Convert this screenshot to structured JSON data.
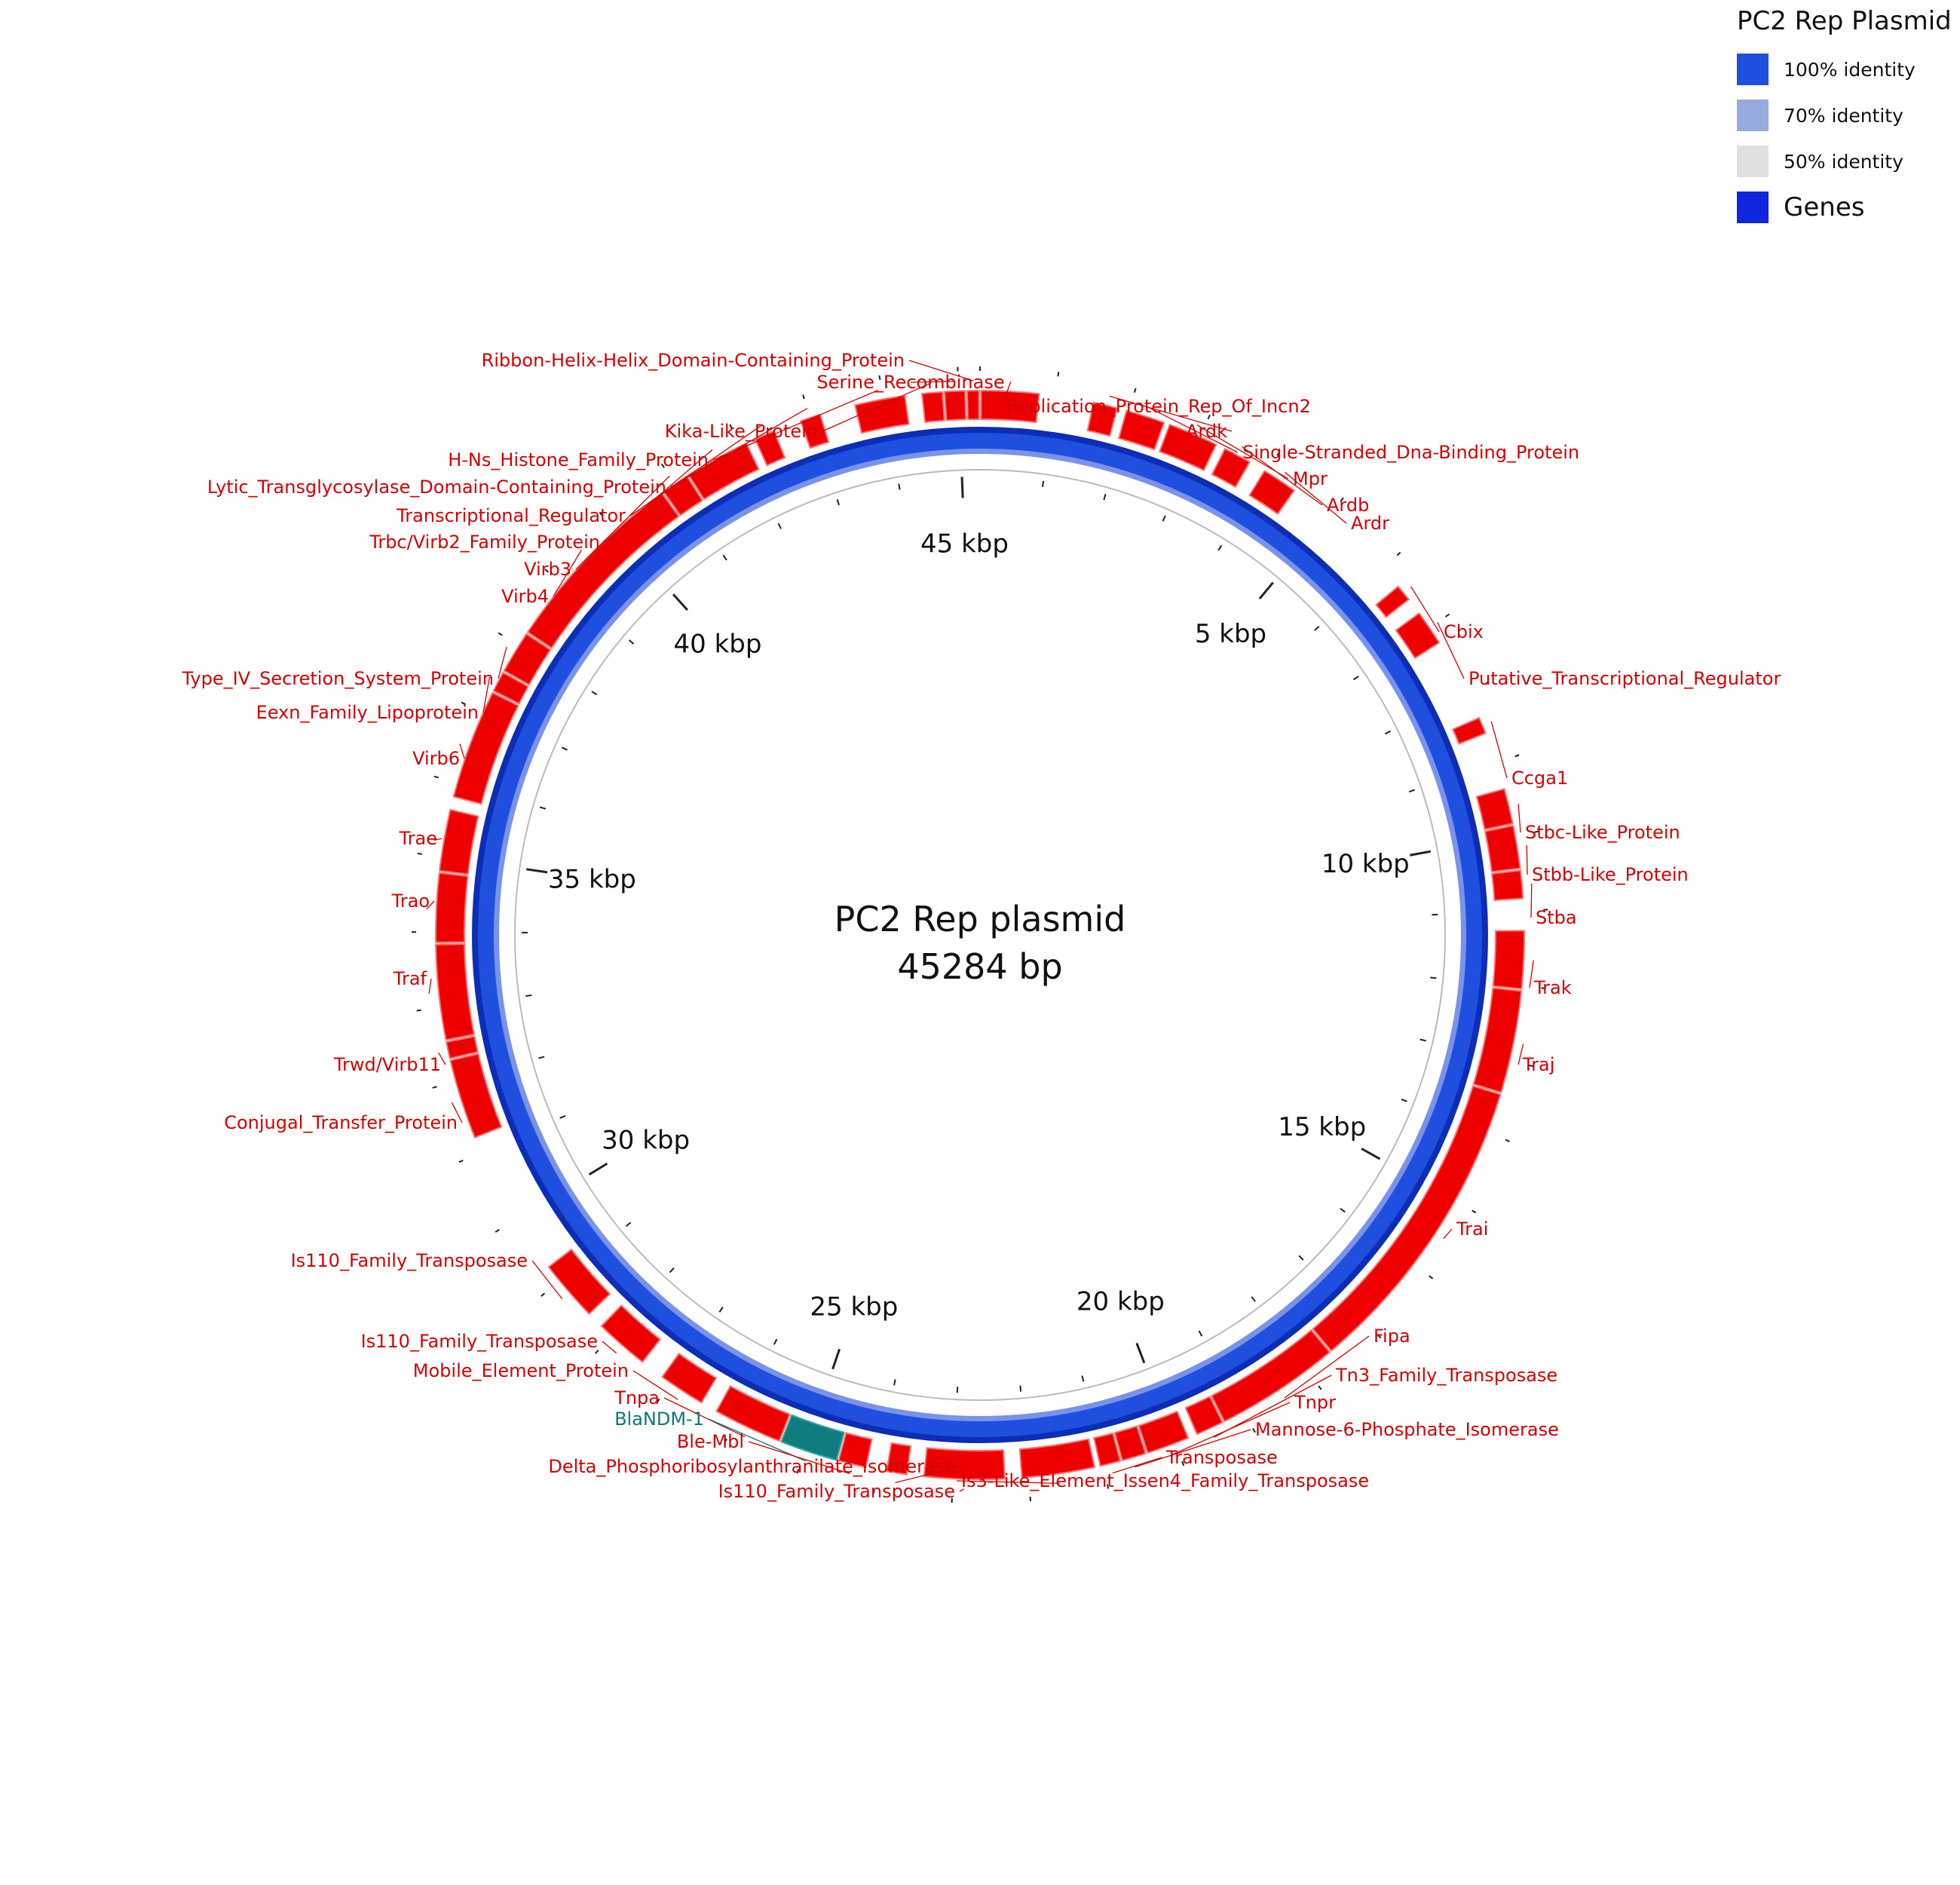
{
  "plasmid": {
    "name": "PC2 Rep plasmid",
    "length_label": "45284 bp",
    "length_bp": 45284
  },
  "legend": {
    "title": "PC2 Rep Plasmid",
    "items": [
      {
        "label": "100% identity",
        "color": "#1f4fdf"
      },
      {
        "label": "70% identity",
        "color": "#97aae0"
      },
      {
        "label": "50% identity",
        "color": "#e0e0e0"
      },
      {
        "label": "Genes",
        "color": "#0f25e0"
      }
    ]
  },
  "colors": {
    "gene": "#ee0000",
    "gene_edge": "#ff7070",
    "highlight_gene": "#0f7d7d",
    "identity_ring": "#1f4fdf",
    "ring_dark": "#0c2db5",
    "ring_light": "#7a93ea",
    "label_red": "#d40000",
    "label_teal": "#0a7a7a"
  },
  "scale_labels": [
    "5 kbp",
    "10 kbp",
    "15 kbp",
    "20 kbp",
    "25 kbp",
    "30 kbp",
    "35 kbp",
    "40 kbp",
    "45 kbp"
  ],
  "scale_positions_kbp": [
    5,
    10,
    15,
    20,
    25,
    30,
    35,
    40,
    45
  ],
  "genes": [
    {
      "name": "Replication_Protein_Rep_Of_Incn2",
      "start": 0,
      "end": 800
    },
    {
      "name": "Ardk",
      "start": 1500,
      "end": 1850
    },
    {
      "name": "Single-Stranded_Dna-Binding_Protein",
      "start": 1950,
      "end": 2500
    },
    {
      "name": "Mpr",
      "start": 2550,
      "end": 3250
    },
    {
      "name": "Ardb",
      "start": 3350,
      "end": 3750
    },
    {
      "name": "Ardr",
      "start": 3950,
      "end": 4450
    },
    {
      "name": "Cbix",
      "start": 6300,
      "end": 6550
    },
    {
      "name": "Putative_Transcriptional_Regulator",
      "start": 6750,
      "end": 7250
    },
    {
      "name": "Ccga1",
      "start": 8350,
      "end": 8600
    },
    {
      "name": "Stbc-Like_Protein",
      "start": 9350,
      "end": 9850
    },
    {
      "name": "Stbb-Like_Protein",
      "start": 9850,
      "end": 10450
    },
    {
      "name": "Stba",
      "start": 10450,
      "end": 10850
    },
    {
      "name": "Trak",
      "start": 11250,
      "end": 12050
    },
    {
      "name": "Traj",
      "start": 12050,
      "end": 13450
    },
    {
      "name": "Trai",
      "start": 13450,
      "end": 17600
    },
    {
      "name": "Fipa",
      "start": 17600,
      "end": 19300
    },
    {
      "name": "Tn3_Family_Transposase",
      "start": 19300,
      "end": 19700
    },
    {
      "name": "Tnpr",
      "start": 19800,
      "end": 20400
    },
    {
      "name": "Mannose-6-Phosphate_Isomerase",
      "start": 20400,
      "end": 20750
    },
    {
      "name": "Transposase",
      "start": 20750,
      "end": 21050
    },
    {
      "name": "Is3-Like_Element_Issen4_Family_Transposase",
      "start": 21100,
      "end": 22100
    },
    {
      "name": "Is110_Family_Transposase",
      "start": 22300,
      "end": 23400
    },
    {
      "name": "Delta_Phosphoribosylanthranilate_Isomerase",
      "start": 23600,
      "end": 23900
    },
    {
      "name": "Ble-Mbl",
      "start": 24150,
      "end": 24550
    },
    {
      "name": "BlaNDM-1",
      "start": 24550,
      "end": 25350,
      "highlight": true
    },
    {
      "name": "Tnpa",
      "start": 25350,
      "end": 26300
    },
    {
      "name": "Mobile_Element_Protein",
      "start": 26500,
      "end": 27150
    },
    {
      "name": "Is110_Family_Transposase",
      "start": 27450,
      "end": 28200
    },
    {
      "name": "Is110_Family_Transposase",
      "start": 28400,
      "end": 29250
    },
    {
      "name": "Conjugal_Transfer_Protein",
      "start": 31200,
      "end": 32300
    },
    {
      "name": "Trwd/Virb11",
      "start": 32300,
      "end": 32550
    },
    {
      "name": "Traf",
      "start": 32550,
      "end": 33850
    },
    {
      "name": "Trao",
      "start": 33850,
      "end": 34800
    },
    {
      "name": "Trae",
      "start": 34800,
      "end": 35650
    },
    {
      "name": "Virb6",
      "start": 35800,
      "end": 37300
    },
    {
      "name": "Eexn_Family_Lipoprotein",
      "start": 37300,
      "end": 37600
    },
    {
      "name": "Type_IV_Secretion_System_Protein",
      "start": 37600,
      "end": 38200
    },
    {
      "name": "Virb4",
      "start": 38200,
      "end": 40800
    },
    {
      "name": "Virb3",
      "start": 40800,
      "end": 41200
    },
    {
      "name": "Trbc/Virb2_Family_Protein",
      "start": 41200,
      "end": 42100
    },
    {
      "name": "Transcriptional_Regulator",
      "start": 42200,
      "end": 42500
    },
    {
      "name": "Lytic_Transglycosylase_Domain-Containing_Protein",
      "start": 42850,
      "end": 43150
    },
    {
      "name": "H-Ns_Histone_Family_Protein",
      "start": 43600,
      "end": 44300
    },
    {
      "name": "Kika-Like_Protein",
      "start": 44500,
      "end": 44800
    },
    {
      "name": "Serine_Recombinase",
      "start": 44800,
      "end": 45100
    },
    {
      "name": "Ribbon-Helix-Helix_Domain-Containing_Protein",
      "start": 45100,
      "end": 45284
    }
  ],
  "label_layout_names": [
    "Ribbon-Helix-Helix_Domain-Containing_Protein",
    "Serine_Recombinase",
    "Replication_Protein_Rep_Of_Incn2",
    "Ardk",
    "Single-Stranded_Dna-Binding_Protein",
    "Kika-Like_Protein",
    "H-Ns_Histone_Family_Protein",
    "Mpr",
    "Lytic_Transglycosylase_Domain-Containing_Protein",
    "Ardb",
    "Transcriptional_Regulator",
    "Ardr",
    "Trbc/Virb2_Family_Protein",
    "Virb3",
    "Virb4",
    "Cbix",
    "Type_IV_Secretion_System_Protein",
    "Putative_Transcriptional_Regulator",
    "Eexn_Family_Lipoprotein",
    "Virb6",
    "Ccga1",
    "Stbc-Like_Protein",
    "Trae",
    "Stbb-Like_Protein",
    "Trao",
    "Stba",
    "Traf",
    "Trak",
    "Trwd/Virb11",
    "Traj",
    "Conjugal_Transfer_Protein",
    "Trai",
    "Is110_Family_Transposase",
    "Fipa",
    "Is110_Family_Transposase",
    "Mobile_Element_Protein",
    "Tn3_Family_Transposase",
    "Tnpa",
    "Tnpr",
    "BlaNDM-1",
    "Mannose-6-Phosphate_Isomerase",
    "Ble-Mbl",
    "Transposase",
    "Delta_Phosphoribosylanthranilate_Isomerase",
    "Is3-Like_Element_Issen4_Family_Transposase",
    "Is110_Family_Transposase"
  ]
}
